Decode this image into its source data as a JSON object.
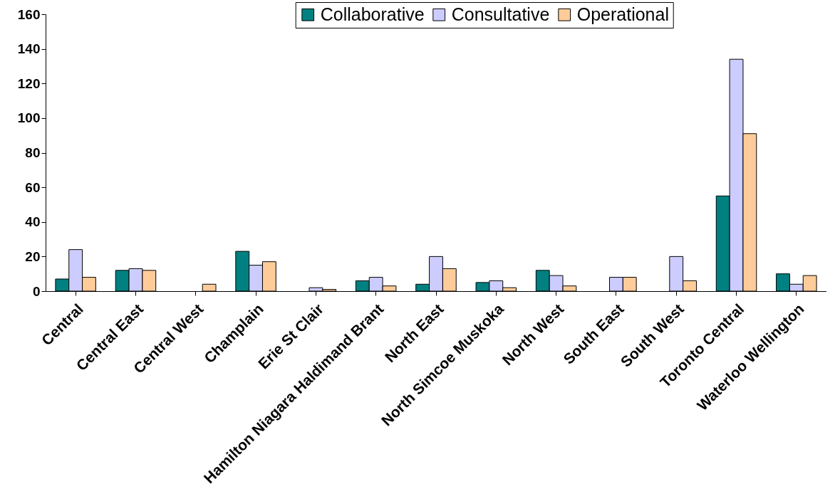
{
  "chart_data": {
    "type": "bar",
    "categories": [
      "Central",
      "Central East",
      "Central West",
      "Champlain",
      "Erie St Clair",
      "Hamilton Niagara Haldimand Brant",
      "North East",
      "North Simcoe Muskoka",
      "North West",
      "South East",
      "South West",
      "Toronto Central",
      "Waterloo Wellington"
    ],
    "series": [
      {
        "name": "Collaborative",
        "color": "#008080",
        "values": [
          7,
          12,
          null,
          23,
          null,
          6,
          4,
          5,
          12,
          null,
          null,
          55,
          10
        ]
      },
      {
        "name": "Consultative",
        "color": "#ccccff",
        "values": [
          24,
          13,
          null,
          15,
          2,
          8,
          20,
          6,
          9,
          8,
          20,
          134,
          4
        ]
      },
      {
        "name": "Operational",
        "color": "#ffcc99",
        "values": [
          8,
          12,
          4,
          17,
          1,
          3,
          13,
          2,
          3,
          8,
          6,
          91,
          9
        ]
      }
    ],
    "ylim": [
      0,
      160
    ],
    "yticks": [
      0,
      20,
      40,
      60,
      80,
      100,
      120,
      140,
      160
    ],
    "grid": false,
    "legend": "top"
  }
}
